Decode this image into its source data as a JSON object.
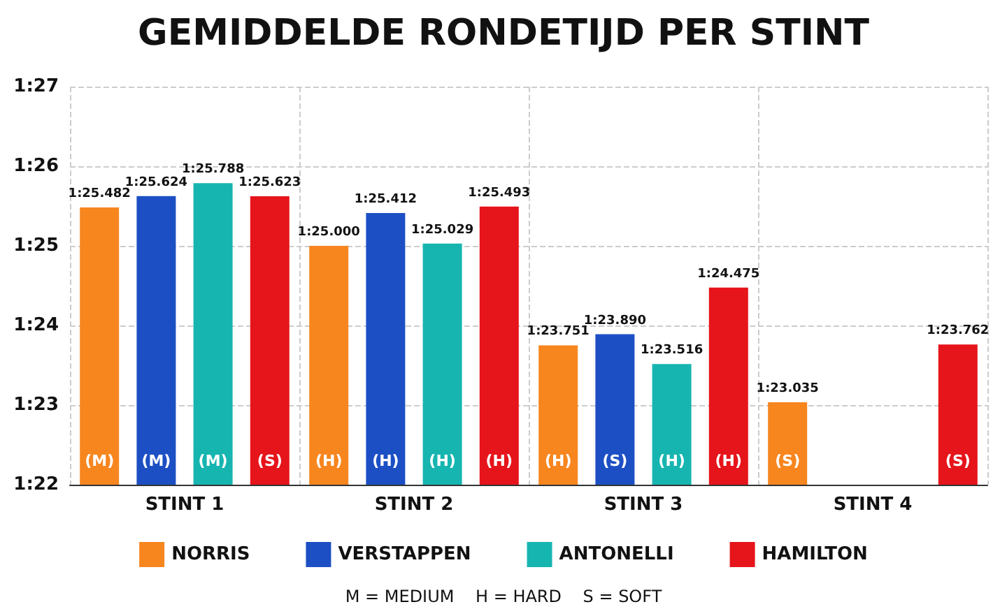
{
  "chart_data": {
    "type": "bar",
    "title": "GEMIDDELDE RONDETIJD PER STINT",
    "categories": [
      "STINT 1",
      "STINT 2",
      "STINT 3",
      "STINT 4"
    ],
    "series": [
      {
        "name": "NORRIS",
        "color": "#f7861f",
        "values": [
          85.482,
          85.0,
          83.751,
          83.035
        ],
        "value_labels": [
          "1:25.482",
          "1:25.000",
          "1:23.751",
          "1:23.035"
        ]
      },
      {
        "name": "VERSTAPPEN",
        "color": "#1d4fc4",
        "values": [
          85.624,
          85.412,
          83.89,
          null
        ],
        "value_labels": [
          "1:25.624",
          "1:25.412",
          "1:23.890",
          null
        ]
      },
      {
        "name": "ANTONELLI",
        "color": "#16b5b0",
        "values": [
          85.788,
          85.029,
          83.516,
          null
        ],
        "value_labels": [
          "1:25.788",
          "1:25.029",
          "1:23.516",
          null
        ]
      },
      {
        "name": "HAMILTON",
        "color": "#e6141b",
        "values": [
          85.623,
          85.493,
          84.475,
          83.762
        ],
        "value_labels": [
          "1:25.623",
          "1:25.493",
          "1:24.475",
          "1:23.762"
        ]
      }
    ],
    "ylim": [
      82,
      87
    ],
    "yticks": [
      {
        "value": 82,
        "label": "1:22"
      },
      {
        "value": 83,
        "label": "1:23"
      },
      {
        "value": 84,
        "label": "1:24"
      },
      {
        "value": 85,
        "label": "1:25"
      },
      {
        "value": 86,
        "label": "1:26"
      },
      {
        "value": 87,
        "label": "1:27"
      }
    ],
    "grid": true,
    "legend": "bottom",
    "annotations": [
      "(M)",
      "(M)",
      "(M)",
      "(S)",
      "(H)",
      "(H)",
      "(H)",
      "(H)",
      "(H)",
      "(S)",
      "(H)",
      "(H)",
      "(S)",
      "(S)",
      "M = MEDIUM    H = HARD    S = SOFT"
    ]
  }
}
